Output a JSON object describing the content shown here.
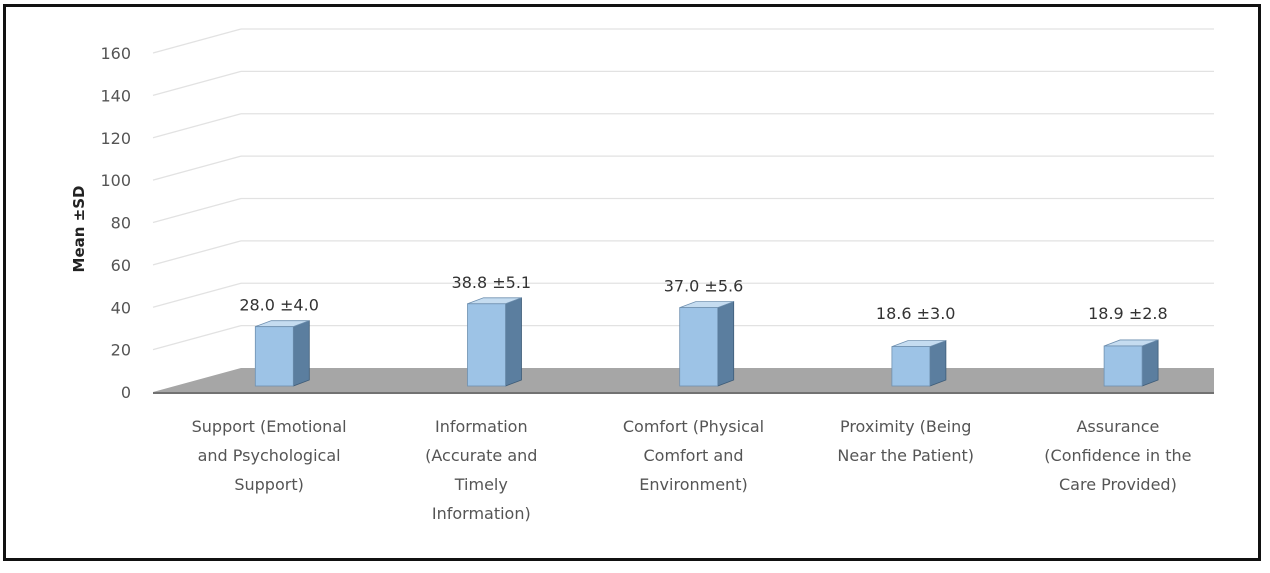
{
  "chart_data": {
    "type": "bar",
    "ylabel": "Mean ±SD",
    "ylim": [
      0,
      160
    ],
    "yticks": [
      0,
      20,
      40,
      60,
      80,
      100,
      120,
      140,
      160
    ],
    "grid": true,
    "categories": [
      [
        "Support (Emotional",
        "and Psychological",
        "Support)"
      ],
      [
        "Information",
        "(Accurate and",
        "Timely",
        "Information)"
      ],
      [
        "Comfort (Physical",
        "Comfort and",
        "Environment)"
      ],
      [
        "Proximity (Being",
        "Near the Patient)"
      ],
      [
        "Assurance",
        "(Confidence in the",
        "Care Provided)"
      ]
    ],
    "values": [
      28.0,
      38.8,
      37.0,
      18.6,
      18.9
    ],
    "data_labels": [
      "28.0 ±4.0",
      "38.8 ±5.1",
      "37.0 ±5.6",
      "18.6 ±3.0",
      "18.9 ±2.8"
    ],
    "colors": {
      "bar_front": "#9dc3e6",
      "bar_side": "#5b7e9f",
      "bar_top": "#c5dcf0",
      "floor": "#a6a6a6",
      "grid": "#e2e2e2"
    }
  }
}
